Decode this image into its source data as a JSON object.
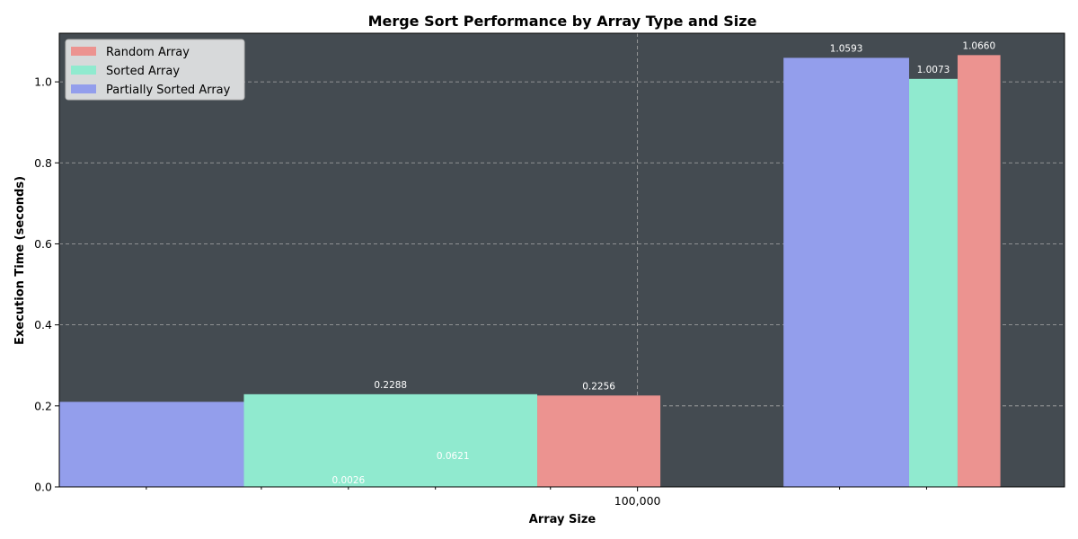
{
  "chart_data": {
    "type": "bar",
    "title": "Merge Sort Performance by Array Type and Size",
    "xlabel": "Array Size",
    "ylabel": "Execution Time (seconds)",
    "x_scale": "log",
    "xlim": [
      1000,
      3000000
    ],
    "ylim": [
      0,
      1.12
    ],
    "yticks": [
      0.0,
      0.2,
      0.4,
      0.6,
      0.8,
      1.0
    ],
    "ytick_labels": [
      "0.0",
      "0.2",
      "0.4",
      "0.6",
      "0.8",
      "1.0"
    ],
    "xticks_labeled": [
      {
        "value": 100000,
        "label": "100,000"
      }
    ],
    "x_minor_ticks": [
      2000,
      5000,
      10000,
      20000,
      50000,
      500000,
      1000000
    ],
    "grid": true,
    "background": "#444b51",
    "legend_position": "upper-left",
    "series": [
      {
        "name": "Random Array",
        "color": "#ec9390",
        "bars": [
          {
            "x0": 45000,
            "x1": 120000,
            "value": 0.2256,
            "label": "0.2256"
          },
          {
            "x0": 1280000,
            "x1": 1800000,
            "value": 1.066,
            "label": "1.0660"
          }
        ]
      },
      {
        "name": "Sorted Array",
        "color": "#90eacf",
        "bars": [
          {
            "x0": 4350,
            "x1": 45000,
            "value": 0.2288,
            "label": "0.2288"
          },
          {
            "x0": 870000,
            "x1": 1280000,
            "value": 1.0073,
            "label": "1.0073"
          }
        ]
      },
      {
        "name": "Partially Sorted Array",
        "color": "#939eec",
        "bars": [
          {
            "x0": 1000,
            "x1": 4350,
            "value": 0.21,
            "label": ""
          },
          {
            "x0": 320000,
            "x1": 870000,
            "value": 1.0593,
            "label": "1.0593"
          }
        ]
      }
    ],
    "annotations": [
      {
        "x": 10000,
        "y": 0.0026,
        "label": "0.0026"
      },
      {
        "x": 23000,
        "y": 0.0621,
        "label": "0.0621"
      }
    ]
  }
}
